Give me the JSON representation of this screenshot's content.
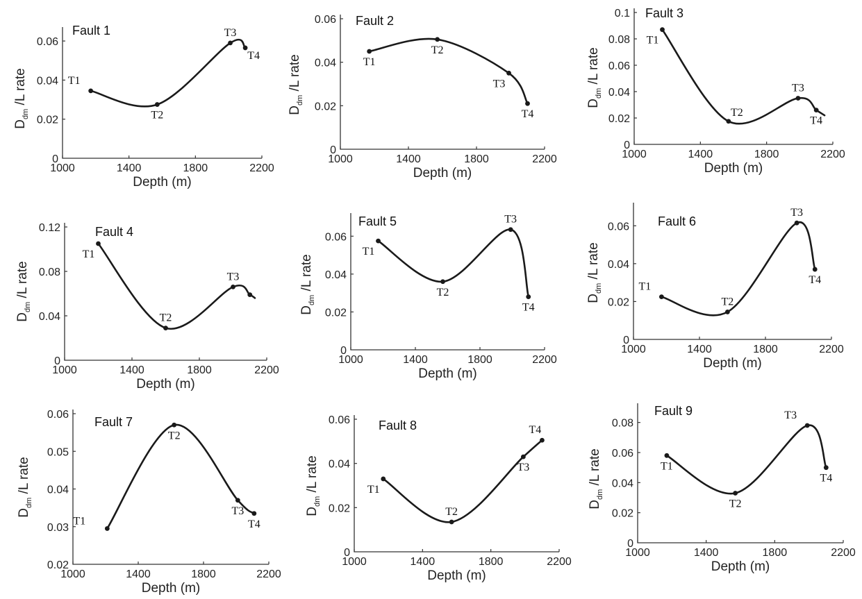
{
  "chart_data": [
    {
      "type": "line",
      "title": "Fault 1",
      "xlabel": "Depth (m)",
      "ylabel": {
        "main": "D",
        "sub": "dm",
        "rest": " /L rate"
      },
      "xlim": [
        1000,
        2200
      ],
      "xticks": [
        "1000",
        "1400",
        "1800",
        "2200"
      ],
      "ylim": [
        0,
        0.07
      ],
      "yticks": [
        {
          "value": 0,
          "label": "0"
        },
        {
          "value": 0.02,
          "label": "0.02"
        },
        {
          "value": 0.04,
          "label": "0.04"
        },
        {
          "value": 0.06,
          "label": "0.06"
        }
      ],
      "points": [
        {
          "label": "T1",
          "x": 1170,
          "y": 0.0345
        },
        {
          "label": "T2",
          "x": 1570,
          "y": 0.0275
        },
        {
          "label": "T3",
          "x": 2010,
          "y": 0.059
        },
        {
          "label": "T4",
          "x": 2100,
          "y": 0.0565
        }
      ],
      "curve_end_x": 2100,
      "curve_end_y": 0.0565,
      "labelpos": [
        "left",
        "below",
        "above",
        "below-right"
      ]
    },
    {
      "type": "line",
      "title": "Fault 2",
      "xlabel": "Depth (m)",
      "ylabel": {
        "main": "D",
        "sub": "dm",
        "rest": " /L rate"
      },
      "xlim": [
        1000,
        2200
      ],
      "xticks": [
        "1000",
        "1400",
        "1800",
        "2200"
      ],
      "ylim": [
        0,
        0.06
      ],
      "yticks": [
        {
          "value": 0,
          "label": "0"
        },
        {
          "value": 0.02,
          "label": "0.02"
        },
        {
          "value": 0.04,
          "label": "0.04"
        },
        {
          "value": 0.06,
          "label": "0.06"
        }
      ],
      "points": [
        {
          "label": "T1",
          "x": 1170,
          "y": 0.045
        },
        {
          "label": "T2",
          "x": 1570,
          "y": 0.0505
        },
        {
          "label": "T3",
          "x": 1990,
          "y": 0.035
        },
        {
          "label": "T4",
          "x": 2100,
          "y": 0.021
        }
      ],
      "curve_end_x": 2100,
      "curve_end_y": 0.021,
      "labelpos": [
        "below",
        "below",
        "below-left",
        "below"
      ]
    },
    {
      "type": "line",
      "title": "Fault 3",
      "xlabel": "Depth (m)",
      "ylabel": {
        "main": "D",
        "sub": "dm",
        "rest": " /L rate"
      },
      "xlim": [
        1000,
        2200
      ],
      "xticks": [
        "1000",
        "1400",
        "1800",
        "2200"
      ],
      "ylim": [
        0,
        0.1
      ],
      "yticks": [
        {
          "value": 0,
          "label": "0"
        },
        {
          "value": 0.02,
          "label": "0.02"
        },
        {
          "value": 0.04,
          "label": "0.04"
        },
        {
          "value": 0.06,
          "label": "0.06"
        },
        {
          "value": 0.08,
          "label": "0.08"
        },
        {
          "value": 0.1,
          "label": "0.1"
        }
      ],
      "points": [
        {
          "label": "T1",
          "x": 1170,
          "y": 0.087
        },
        {
          "label": "T2",
          "x": 1570,
          "y": 0.0175
        },
        {
          "label": "T3",
          "x": 1990,
          "y": 0.035
        },
        {
          "label": "T4",
          "x": 2100,
          "y": 0.026
        }
      ],
      "curve_end_x": 2150,
      "curve_end_y": 0.022,
      "labelpos": [
        "below-left",
        "above-right",
        "above",
        "below"
      ]
    },
    {
      "type": "line",
      "title": "Fault 4",
      "xlabel": "Depth (m)",
      "ylabel": {
        "main": "D",
        "sub": "dm",
        "rest": " /L rate"
      },
      "xlim": [
        1000,
        2200
      ],
      "xticks": [
        "1000",
        "1400",
        "1800",
        "2200"
      ],
      "ylim": [
        0,
        0.12
      ],
      "yticks": [
        {
          "value": 0,
          "label": "0"
        },
        {
          "value": 0.04,
          "label": "0.04"
        },
        {
          "value": 0.08,
          "label": "0.08"
        },
        {
          "value": 0.12,
          "label": "0.12"
        }
      ],
      "points": [
        {
          "label": "T1",
          "x": 1200,
          "y": 0.105
        },
        {
          "label": "T2",
          "x": 1600,
          "y": 0.029
        },
        {
          "label": "T3",
          "x": 2000,
          "y": 0.066
        },
        {
          "label": "",
          "x": 2100,
          "y": 0.059
        }
      ],
      "curve_end_x": 2130,
      "curve_end_y": 0.056,
      "labelpos": [
        "below-left",
        "above",
        "above",
        "none"
      ]
    },
    {
      "type": "line",
      "title": "Fault 5",
      "xlabel": "Depth (m)",
      "ylabel": {
        "main": "D",
        "sub": "dm",
        "rest": " /L rate"
      },
      "xlim": [
        1000,
        2200
      ],
      "xticks": [
        "1000",
        "1400",
        "1800",
        "2200"
      ],
      "ylim": [
        0,
        0.07
      ],
      "yticks": [
        {
          "value": 0,
          "label": "0"
        },
        {
          "value": 0.02,
          "label": "0.02"
        },
        {
          "value": 0.04,
          "label": "0.04"
        },
        {
          "value": 0.06,
          "label": "0.06"
        }
      ],
      "points": [
        {
          "label": "T1",
          "x": 1170,
          "y": 0.0575
        },
        {
          "label": "T2",
          "x": 1570,
          "y": 0.036
        },
        {
          "label": "T3",
          "x": 1990,
          "y": 0.0635
        },
        {
          "label": "T4",
          "x": 2100,
          "y": 0.028
        }
      ],
      "curve_end_x": 2100,
      "curve_end_y": 0.028,
      "labelpos": [
        "below-left",
        "below",
        "above",
        "below"
      ]
    },
    {
      "type": "line",
      "title": "Fault 6",
      "xlabel": "Depth (m)",
      "ylabel": {
        "main": "D",
        "sub": "dm",
        "rest": " /L rate"
      },
      "xlim": [
        1000,
        2200
      ],
      "xticks": [
        "1000",
        "1400",
        "1800",
        "2200"
      ],
      "ylim": [
        0,
        0.07
      ],
      "yticks": [
        {
          "value": 0,
          "label": "0"
        },
        {
          "value": 0.02,
          "label": "0.02"
        },
        {
          "value": 0.04,
          "label": "0.04"
        },
        {
          "value": 0.06,
          "label": "0.06"
        }
      ],
      "points": [
        {
          "label": "T1",
          "x": 1170,
          "y": 0.0225
        },
        {
          "label": "T2",
          "x": 1570,
          "y": 0.0145
        },
        {
          "label": "T3",
          "x": 1990,
          "y": 0.0615
        },
        {
          "label": "T4",
          "x": 2100,
          "y": 0.037
        }
      ],
      "curve_end_x": 2100,
      "curve_end_y": 0.037,
      "labelpos": [
        "left",
        "above",
        "above",
        "below"
      ]
    },
    {
      "type": "line",
      "title": "Fault 7",
      "xlabel": "Depth (m)",
      "ylabel": {
        "main": "D",
        "sub": "dm",
        "rest": " /L rate"
      },
      "xlim": [
        1000,
        2200
      ],
      "xticks": [
        "1000",
        "1400",
        "1800",
        "2200"
      ],
      "ylim": [
        0.02,
        0.06
      ],
      "yticks": [
        {
          "value": 0.02,
          "label": "0.02"
        },
        {
          "value": 0.03,
          "label": "0.03"
        },
        {
          "value": 0.04,
          "label": "0.04"
        },
        {
          "value": 0.05,
          "label": "0.05"
        },
        {
          "value": 0.06,
          "label": "0.06"
        }
      ],
      "points": [
        {
          "label": "T1",
          "x": 1210,
          "y": 0.0295
        },
        {
          "label": "T2",
          "x": 1620,
          "y": 0.057
        },
        {
          "label": "T3",
          "x": 2010,
          "y": 0.037
        },
        {
          "label": "T4",
          "x": 2110,
          "y": 0.0335
        }
      ],
      "curve_end_x": 2110,
      "curve_end_y": 0.0335,
      "labelpos": [
        "far-left",
        "below",
        "below",
        "below"
      ]
    },
    {
      "type": "line",
      "title": "Fault 8",
      "xlabel": "Depth (m)",
      "ylabel": {
        "main": "D",
        "sub": "dm",
        "rest": " /L rate"
      },
      "xlim": [
        1000,
        2200
      ],
      "xticks": [
        "1000",
        "1400",
        "1800",
        "2200"
      ],
      "ylim": [
        0,
        0.06
      ],
      "yticks": [
        {
          "value": 0,
          "label": "0"
        },
        {
          "value": 0.02,
          "label": "0.02"
        },
        {
          "value": 0.04,
          "label": "0.04"
        },
        {
          "value": 0.06,
          "label": "0.06"
        }
      ],
      "points": [
        {
          "label": "T1",
          "x": 1170,
          "y": 0.033
        },
        {
          "label": "T2",
          "x": 1570,
          "y": 0.0135
        },
        {
          "label": "T3",
          "x": 1990,
          "y": 0.043
        },
        {
          "label": "T4",
          "x": 2100,
          "y": 0.0505
        }
      ],
      "curve_end_x": 2100,
      "curve_end_y": 0.0505,
      "labelpos": [
        "below-left",
        "above",
        "below",
        "above-left"
      ]
    },
    {
      "type": "line",
      "title": "Fault 9",
      "xlabel": "Depth (m)",
      "ylabel": {
        "main": "D",
        "sub": "dm",
        "rest": " /L rate"
      },
      "xlim": [
        1000,
        2200
      ],
      "xticks": [
        "1000",
        "1400",
        "1800",
        "2200"
      ],
      "ylim": [
        0,
        0.09
      ],
      "yticks": [
        {
          "value": 0,
          "label": "0"
        },
        {
          "value": 0.02,
          "label": "0.02"
        },
        {
          "value": 0.04,
          "label": "0.04"
        },
        {
          "value": 0.06,
          "label": "0.06"
        },
        {
          "value": 0.08,
          "label": "0.08"
        }
      ],
      "points": [
        {
          "label": "T1",
          "x": 1170,
          "y": 0.058
        },
        {
          "label": "T2",
          "x": 1570,
          "y": 0.033
        },
        {
          "label": "T3",
          "x": 1990,
          "y": 0.078
        },
        {
          "label": "T4",
          "x": 2100,
          "y": 0.05
        }
      ],
      "curve_end_x": 2100,
      "curve_end_y": 0.05,
      "labelpos": [
        "below",
        "below",
        "left",
        "below"
      ]
    }
  ]
}
